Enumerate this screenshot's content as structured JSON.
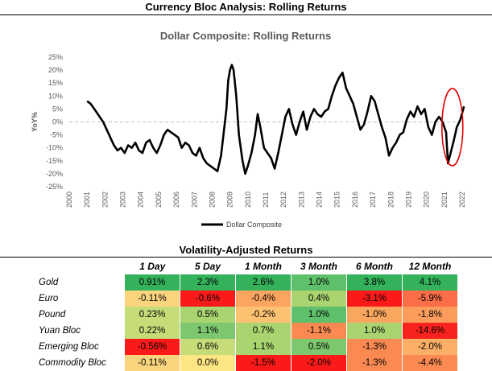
{
  "header": {
    "title": "Currency Bloc Analysis: Rolling Returns"
  },
  "chart_data": {
    "type": "line",
    "title": "Dollar Composite: Rolling Returns",
    "ylabel": "YoY%",
    "xlabel": "",
    "ylim": [
      -25,
      25
    ],
    "yticks": [
      25,
      20,
      15,
      10,
      5,
      0,
      -5,
      -10,
      -15,
      -20,
      -25
    ],
    "ytick_labels": [
      "25%",
      "20%",
      "15%",
      "10%",
      "5%",
      "0%",
      "-5%",
      "-10%",
      "-15%",
      "-20%",
      "-25%"
    ],
    "xlim": [
      2000,
      2022
    ],
    "xtick_labels": [
      "2000",
      "2001",
      "2002",
      "2003",
      "2004",
      "2005",
      "2006",
      "2007",
      "2008",
      "2009",
      "2010",
      "2011",
      "2012",
      "2013",
      "2014",
      "2015",
      "2016",
      "2017",
      "2018",
      "2019",
      "2020",
      "2021",
      "2022"
    ],
    "legend": {
      "position": "bottom",
      "entries": [
        "Dollar Composite"
      ]
    },
    "annotation": "red ellipse highlighting 2021-2022",
    "series": [
      {
        "name": "Dollar Composite",
        "color": "#000000",
        "x": [
          2001.0,
          2001.2,
          2001.4,
          2001.6,
          2001.9,
          2002.1,
          2002.3,
          2002.5,
          2002.7,
          2002.9,
          2003.1,
          2003.3,
          2003.5,
          2003.7,
          2003.9,
          2004.1,
          2004.3,
          2004.5,
          2004.7,
          2004.9,
          2005.1,
          2005.3,
          2005.5,
          2005.7,
          2005.9,
          2006.1,
          2006.3,
          2006.5,
          2006.7,
          2006.9,
          2007.1,
          2007.3,
          2007.5,
          2007.7,
          2007.9,
          2008.1,
          2008.3,
          2008.5,
          2008.7,
          2008.8,
          2008.9,
          2009.0,
          2009.1,
          2009.2,
          2009.35,
          2009.5,
          2009.7,
          2009.85,
          2010.0,
          2010.2,
          2010.4,
          2010.55,
          2010.7,
          2010.9,
          2011.1,
          2011.3,
          2011.5,
          2011.7,
          2011.9,
          2012.1,
          2012.3,
          2012.5,
          2012.7,
          2012.9,
          2013.1,
          2013.3,
          2013.5,
          2013.7,
          2013.9,
          2014.1,
          2014.3,
          2014.5,
          2014.7,
          2014.9,
          2015.1,
          2015.3,
          2015.5,
          2015.7,
          2015.9,
          2016.1,
          2016.3,
          2016.5,
          2016.7,
          2016.9,
          2017.1,
          2017.3,
          2017.5,
          2017.7,
          2017.9,
          2018.1,
          2018.3,
          2018.5,
          2018.7,
          2018.9,
          2019.1,
          2019.3,
          2019.5,
          2019.7,
          2019.9,
          2020.1,
          2020.3,
          2020.5,
          2020.7,
          2020.9,
          2021.1,
          2021.2,
          2021.35,
          2021.5,
          2021.7,
          2021.9,
          2022.1
        ],
        "values": [
          8,
          7,
          5,
          3,
          0,
          -3,
          -6,
          -9,
          -11,
          -10,
          -12,
          -9,
          -10,
          -8,
          -11,
          -12,
          -8,
          -7,
          -10,
          -12,
          -9,
          -5,
          -3,
          -4,
          -5,
          -6,
          -10,
          -8,
          -9,
          -12,
          -13,
          -10,
          -14,
          -16,
          -17,
          -18,
          -19,
          -13,
          -1,
          5,
          16,
          20,
          22,
          20,
          10,
          -5,
          -15,
          -20,
          -17,
          -12,
          -5,
          3,
          -2,
          -10,
          -12,
          -14,
          -18,
          -12,
          -5,
          2,
          5,
          -1,
          -5,
          0,
          4,
          -3,
          2,
          5,
          3,
          2,
          4,
          5,
          10,
          14,
          17,
          19,
          13,
          10,
          7,
          2,
          -3,
          -1,
          4,
          10,
          8,
          3,
          -2,
          -6,
          -13,
          -10,
          -8,
          -5,
          -4,
          1,
          4,
          2,
          6,
          3,
          5,
          -2,
          -5,
          0,
          2,
          0,
          -4,
          -16,
          -12,
          -8,
          -2,
          1,
          6
        ]
      }
    ]
  },
  "table": {
    "title": "Volatility-Adjusted Returns",
    "columns": [
      "1 Day",
      "5 Day",
      "1 Month",
      "3 Month",
      "6 Month",
      "12 Month"
    ],
    "rows": [
      {
        "label": "Gold",
        "values": [
          "0.91%",
          "2.3%",
          "2.6%",
          "1.0%",
          "3.8%",
          "4.1%"
        ],
        "colors": [
          "#33b15b",
          "#33b15b",
          "#33b15b",
          "#5fc06c",
          "#33b15b",
          "#33b15b"
        ]
      },
      {
        "label": "Euro",
        "values": [
          "-0.11%",
          "-0.6%",
          "-0.4%",
          "0.4%",
          "-3.1%",
          "-5.9%"
        ],
        "colors": [
          "#fbd57d",
          "#fb1a1a",
          "#fba561",
          "#a9d470",
          "#fb1a1a",
          "#fb6d47"
        ]
      },
      {
        "label": "Pound",
        "values": [
          "0.23%",
          "0.5%",
          "-0.2%",
          "1.0%",
          "-1.0%",
          "-1.8%"
        ],
        "colors": [
          "#c5dc78",
          "#a9d470",
          "#fcc171",
          "#5fc06c",
          "#f9a75f",
          "#fb9c5c"
        ]
      },
      {
        "label": "Yuan Bloc",
        "values": [
          "0.22%",
          "1.1%",
          "0.7%",
          "-1.1%",
          "1.0%",
          "-14.6%"
        ],
        "colors": [
          "#c5dc78",
          "#7dc76e",
          "#a9d470",
          "#fb8a52",
          "#a9d470",
          "#f8221e"
        ]
      },
      {
        "label": "Emerging Bloc",
        "values": [
          "-0.56%",
          "0.6%",
          "1.1%",
          "0.5%",
          "-1.3%",
          "-2.0%"
        ],
        "colors": [
          "#fb1a1a",
          "#c5dc78",
          "#a9d470",
          "#7dc76e",
          "#fb8a52",
          "#fcb067"
        ]
      },
      {
        "label": "Commodity Bloc",
        "values": [
          "-0.11%",
          "0.0%",
          "-1.5%",
          "-2.0%",
          "-1.3%",
          "-4.4%"
        ],
        "colors": [
          "#fbd57d",
          "#fde683",
          "#fb1a1a",
          "#fb1a1a",
          "#fb8a52",
          "#fb8a52"
        ]
      }
    ]
  }
}
